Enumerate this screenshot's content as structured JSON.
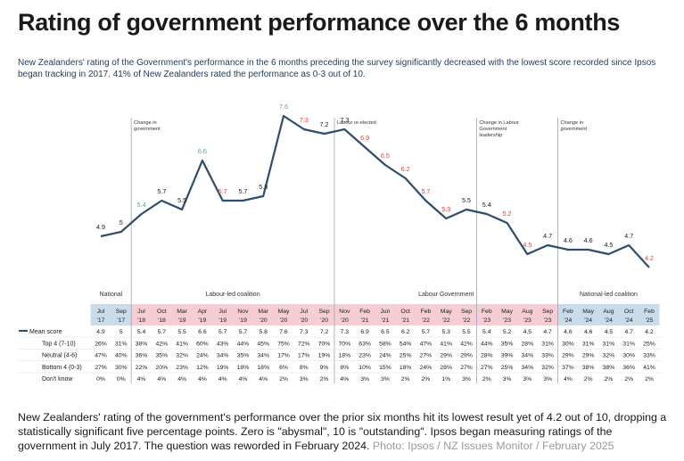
{
  "header": {
    "title": "Rating of government performance over the 6 months",
    "subtitle": "New Zealanders' rating of the Government's performance in the 6 months preceding the survey significantly decreased with the lowest score recorded since Ipsos began tracking in 2017. 41% of New Zealanders rated the performance as 0-3 out of 10."
  },
  "caption": {
    "text": "New Zealanders' rating of the government's performance over the prior six months hit its lowest result yet of 4.2 out of 10, dropping a statistically significant five percentage points. Zero is \"abysmal\", 10 is \"outstanding\". Ipsos began measuring ratings of the government in July 2017. The question was reworded in February 2024.",
    "credit": "Photo: Ipsos / NZ Issues Monitor / February 2025"
  },
  "colors": {
    "line": "#2e4d6b",
    "up": "#4caf6a",
    "down": "#e0413a",
    "neutral": "#1a1a1a",
    "national_band": "#c8dcec",
    "labour_band": "#f6cdd3",
    "national_led_band": "#c8dcec",
    "divider": "#9aa5b1"
  },
  "chart_data": {
    "type": "line",
    "title": "Rating of government performance over the 6 months",
    "series_name": "Mean score",
    "months": [
      "Jul",
      "Sep",
      "Jul",
      "Oct",
      "Mar",
      "Apr",
      "Jul",
      "Nov",
      "Mar",
      "May",
      "Jul",
      "Sep",
      "Nov",
      "Feb",
      "Jun",
      "Oct",
      "Feb",
      "May",
      "Sep",
      "Feb",
      "May",
      "Aug",
      "Sep",
      "Feb",
      "May",
      "Aug",
      "Oct",
      "Feb"
    ],
    "years": [
      "'17",
      "'17",
      "'18",
      "'18",
      "'19",
      "'19",
      "'19",
      "'19",
      "'20",
      "'20",
      "'20",
      "'20",
      "'20",
      "'21",
      "'21",
      "'21",
      "'22",
      "'22",
      "'22",
      "'23",
      "'23",
      "'23",
      "'23",
      "'24",
      "'24",
      "'24",
      "'24",
      "'25"
    ],
    "mean_score": [
      4.9,
      5,
      5.4,
      5.7,
      5.5,
      6.6,
      5.7,
      5.7,
      5.8,
      7.6,
      7.3,
      7.2,
      7.3,
      6.9,
      6.5,
      6.2,
      5.7,
      5.3,
      5.5,
      5.4,
      5.2,
      4.5,
      4.7,
      4.6,
      4.6,
      4.5,
      4.7,
      4.2
    ],
    "label_tone": [
      "neutral",
      "neutral",
      "up",
      "neutral",
      "neutral",
      "up",
      "down",
      "neutral",
      "neutral",
      "up",
      "down",
      "neutral",
      "neutral",
      "down",
      "down",
      "down",
      "down",
      "down",
      "neutral",
      "neutral",
      "down",
      "down",
      "neutral",
      "neutral",
      "neutral",
      "neutral",
      "neutral",
      "down"
    ],
    "rows": [
      {
        "label": "Mean score",
        "values": [
          "4.9",
          "5",
          "5.4",
          "5.7",
          "5.5",
          "6.6",
          "5.7",
          "5.7",
          "5.8",
          "7.6",
          "7.3",
          "7.2",
          "7.3",
          "6.9",
          "6.5",
          "6.2",
          "5.7",
          "5.3",
          "5.5",
          "5.4",
          "5.2",
          "4.5",
          "4.7",
          "4.6",
          "4.6",
          "4.5",
          "4.7",
          "4.2"
        ]
      },
      {
        "label": "Top 4 (7-10)",
        "values": [
          "26%",
          "31%",
          "38%",
          "42%",
          "41%",
          "60%",
          "43%",
          "44%",
          "45%",
          "75%",
          "72%",
          "70%",
          "70%",
          "63%",
          "58%",
          "54%",
          "47%",
          "41%",
          "42%",
          "44%",
          "35%",
          "28%",
          "31%",
          "30%",
          "31%",
          "31%",
          "31%",
          "25%"
        ]
      },
      {
        "label": "Neutral (4-6)",
        "values": [
          "47%",
          "40%",
          "36%",
          "35%",
          "32%",
          "24%",
          "34%",
          "35%",
          "34%",
          "17%",
          "17%",
          "19%",
          "18%",
          "23%",
          "24%",
          "25%",
          "27%",
          "29%",
          "29%",
          "28%",
          "39%",
          "34%",
          "33%",
          "29%",
          "29%",
          "32%",
          "30%",
          "33%"
        ]
      },
      {
        "label": "Bottom 4 (0-3)",
        "values": [
          "27%",
          "30%",
          "22%",
          "20%",
          "23%",
          "12%",
          "19%",
          "18%",
          "18%",
          "6%",
          "8%",
          "9%",
          "8%",
          "10%",
          "15%",
          "18%",
          "24%",
          "28%",
          "27%",
          "27%",
          "25%",
          "34%",
          "32%",
          "37%",
          "38%",
          "38%",
          "36%",
          "41%"
        ]
      },
      {
        "label": "Don't know",
        "values": [
          "0%",
          "0%",
          "4%",
          "4%",
          "4%",
          "4%",
          "4%",
          "4%",
          "4%",
          "2%",
          "3%",
          "2%",
          "4%",
          "3%",
          "3%",
          "2%",
          "2%",
          "1%",
          "3%",
          "2%",
          "3%",
          "3%",
          "3%",
          "4%",
          "2%",
          "2%",
          "2%",
          "2%"
        ]
      }
    ],
    "eras": [
      {
        "label": "National",
        "start": 0,
        "end": 1,
        "band": "national"
      },
      {
        "label": "Labour-led coalition",
        "start": 2,
        "end": 11,
        "band": "labour"
      },
      {
        "label": "Labour Government",
        "start": 12,
        "end": 22,
        "band": "labour"
      },
      {
        "label": "National-led coalition",
        "start": 23,
        "end": 27,
        "band": "national_led"
      }
    ],
    "events": [
      {
        "before_index": 2,
        "text": [
          "Change in",
          "government"
        ]
      },
      {
        "before_index": 12,
        "text": [
          "Labour re-elected"
        ]
      },
      {
        "before_index": 19,
        "text": [
          "Change in Labour",
          "Government",
          "leadership"
        ]
      },
      {
        "before_index": 23,
        "text": [
          "Change in",
          "government"
        ]
      }
    ],
    "ylim": [
      3.5,
      8.5
    ],
    "xlabel": "",
    "ylabel": ""
  }
}
